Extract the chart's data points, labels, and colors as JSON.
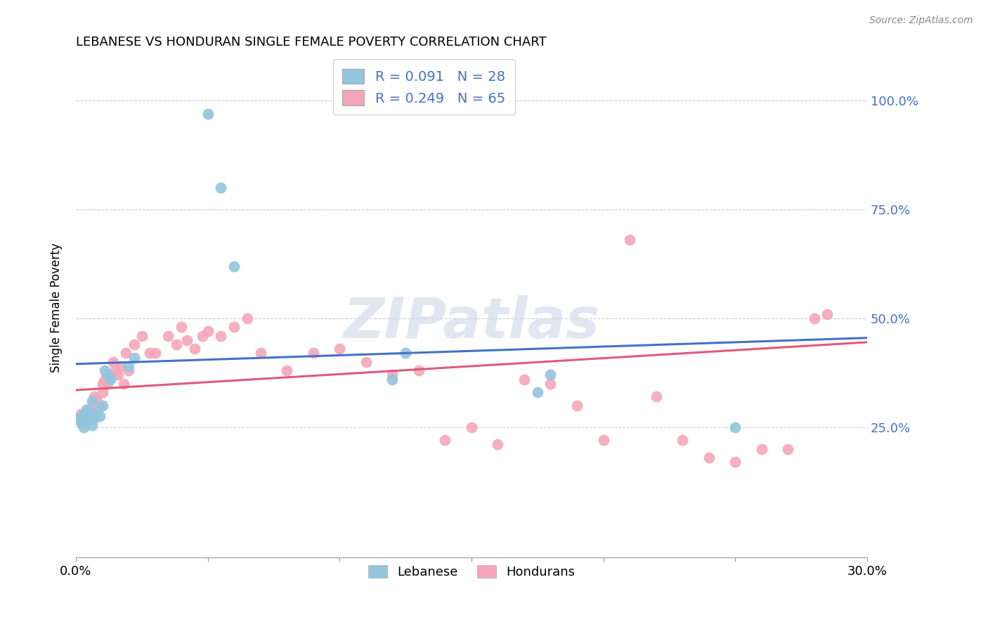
{
  "title": "LEBANESE VS HONDURAN SINGLE FEMALE POVERTY CORRELATION CHART",
  "source": "Source: ZipAtlas.com",
  "ylabel": "Single Female Poverty",
  "ytick_values": [
    0.25,
    0.5,
    0.75,
    1.0
  ],
  "ytick_labels": [
    "25.0%",
    "50.0%",
    "75.0%",
    "100.0%"
  ],
  "xlim": [
    0.0,
    0.3
  ],
  "ylim": [
    -0.05,
    1.1
  ],
  "blue_color": "#92c5de",
  "pink_color": "#f4a6b8",
  "blue_line_color": "#4472c4",
  "pink_line_color": "#e05a7a",
  "watermark_color": "#ccd8e8",
  "right_tick_color": "#4472c4",
  "legend_label_color": "#4472c4",
  "lebanese_x": [
    0.001,
    0.002,
    0.002,
    0.003,
    0.003,
    0.004,
    0.004,
    0.005,
    0.005,
    0.006,
    0.006,
    0.007,
    0.008,
    0.009,
    0.01,
    0.011,
    0.012,
    0.013,
    0.02,
    0.022,
    0.05,
    0.055,
    0.06,
    0.12,
    0.125,
    0.175,
    0.18,
    0.25
  ],
  "lebanese_y": [
    0.27,
    0.26,
    0.27,
    0.25,
    0.28,
    0.265,
    0.29,
    0.27,
    0.28,
    0.255,
    0.31,
    0.27,
    0.285,
    0.275,
    0.3,
    0.38,
    0.37,
    0.36,
    0.39,
    0.41,
    0.97,
    0.8,
    0.62,
    0.36,
    0.42,
    0.33,
    0.37,
    0.25
  ],
  "hondurans_x": [
    0.001,
    0.002,
    0.002,
    0.003,
    0.003,
    0.004,
    0.004,
    0.005,
    0.005,
    0.006,
    0.006,
    0.007,
    0.007,
    0.008,
    0.008,
    0.009,
    0.01,
    0.01,
    0.011,
    0.012,
    0.013,
    0.014,
    0.015,
    0.016,
    0.017,
    0.018,
    0.019,
    0.02,
    0.022,
    0.025,
    0.028,
    0.03,
    0.035,
    0.038,
    0.04,
    0.042,
    0.045,
    0.048,
    0.05,
    0.055,
    0.06,
    0.065,
    0.07,
    0.08,
    0.09,
    0.1,
    0.11,
    0.12,
    0.13,
    0.14,
    0.15,
    0.16,
    0.17,
    0.18,
    0.19,
    0.2,
    0.21,
    0.22,
    0.23,
    0.24,
    0.25,
    0.26,
    0.27,
    0.28,
    0.285
  ],
  "hondurans_y": [
    0.27,
    0.265,
    0.28,
    0.275,
    0.27,
    0.29,
    0.285,
    0.27,
    0.285,
    0.28,
    0.3,
    0.285,
    0.32,
    0.285,
    0.31,
    0.3,
    0.33,
    0.35,
    0.36,
    0.35,
    0.37,
    0.4,
    0.38,
    0.37,
    0.39,
    0.35,
    0.42,
    0.38,
    0.44,
    0.46,
    0.42,
    0.42,
    0.46,
    0.44,
    0.48,
    0.45,
    0.43,
    0.46,
    0.47,
    0.46,
    0.48,
    0.5,
    0.42,
    0.38,
    0.42,
    0.43,
    0.4,
    0.37,
    0.38,
    0.22,
    0.25,
    0.21,
    0.36,
    0.35,
    0.3,
    0.22,
    0.68,
    0.32,
    0.22,
    0.18,
    0.17,
    0.2,
    0.2,
    0.5,
    0.51
  ]
}
